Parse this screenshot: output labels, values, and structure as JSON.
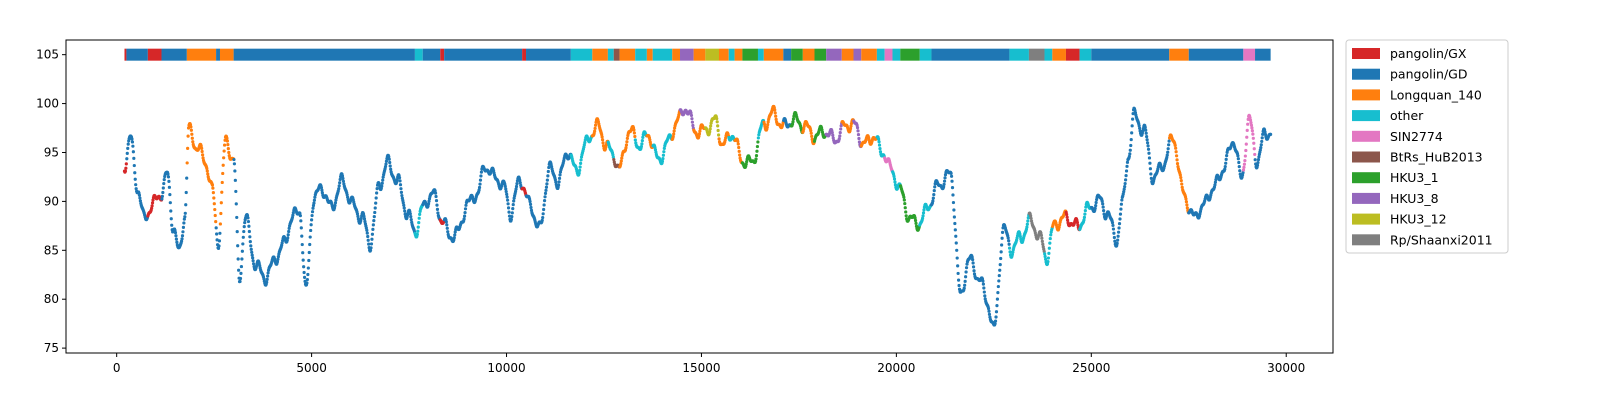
{
  "chart_data": {
    "type": "scatter",
    "title": "",
    "xlabel": "",
    "ylabel": "",
    "xlim": [
      -1300,
      31200
    ],
    "ylim": [
      74.5,
      106.5
    ],
    "xticks": [
      0,
      5000,
      10000,
      15000,
      20000,
      25000,
      30000
    ],
    "yticks": [
      75,
      80,
      85,
      90,
      95,
      100,
      105
    ],
    "grid": false,
    "legend_position": "outside-right",
    "series": [
      {
        "name": "pangolin/GX",
        "color": "#d62728"
      },
      {
        "name": "pangolin/GD",
        "color": "#1f77b4"
      },
      {
        "name": "Longquan_140",
        "color": "#ff7f0e"
      },
      {
        "name": "other",
        "color": "#17becf"
      },
      {
        "name": "SIN2774",
        "color": "#e377c2"
      },
      {
        "name": "BtRs_HuB2013",
        "color": "#8c564b"
      },
      {
        "name": "HKU3_1",
        "color": "#2ca02c"
      },
      {
        "name": "HKU3_8",
        "color": "#9467bd"
      },
      {
        "name": "HKU3_12",
        "color": "#bcbd22"
      },
      {
        "name": "Rp/Shaanxi2011",
        "color": "#7f7f7f"
      }
    ],
    "top_bar_y": 105,
    "segments": [
      [
        200,
        250,
        "pangolin/GX"
      ],
      [
        250,
        800,
        "pangolin/GD"
      ],
      [
        800,
        1150,
        "pangolin/GX"
      ],
      [
        1150,
        1800,
        "pangolin/GD"
      ],
      [
        1800,
        2550,
        "Longquan_140"
      ],
      [
        2550,
        2650,
        "pangolin/GD"
      ],
      [
        2650,
        3000,
        "Longquan_140"
      ],
      [
        3000,
        7650,
        "pangolin/GD"
      ],
      [
        7650,
        7850,
        "other"
      ],
      [
        7850,
        8300,
        "pangolin/GD"
      ],
      [
        8300,
        8400,
        "pangolin/GX"
      ],
      [
        8400,
        10400,
        "pangolin/GD"
      ],
      [
        10400,
        10500,
        "pangolin/GX"
      ],
      [
        10500,
        11650,
        "pangolin/GD"
      ],
      [
        11650,
        12200,
        "other"
      ],
      [
        12200,
        12600,
        "Longquan_140"
      ],
      [
        12600,
        12750,
        "other"
      ],
      [
        12750,
        12900,
        "BtRs_HuB2013"
      ],
      [
        12900,
        13300,
        "Longquan_140"
      ],
      [
        13300,
        13600,
        "other"
      ],
      [
        13600,
        13750,
        "Longquan_140"
      ],
      [
        13750,
        14250,
        "other"
      ],
      [
        14250,
        14450,
        "Longquan_140"
      ],
      [
        14450,
        14800,
        "HKU3_8"
      ],
      [
        14800,
        15100,
        "Longquan_140"
      ],
      [
        15100,
        15450,
        "HKU3_12"
      ],
      [
        15450,
        15700,
        "Longquan_140"
      ],
      [
        15700,
        15850,
        "other"
      ],
      [
        15850,
        16050,
        "Longquan_140"
      ],
      [
        16050,
        16450,
        "HKU3_1"
      ],
      [
        16450,
        16600,
        "other"
      ],
      [
        16600,
        17100,
        "Longquan_140"
      ],
      [
        17100,
        17300,
        "pangolin/GD"
      ],
      [
        17300,
        17600,
        "HKU3_1"
      ],
      [
        17600,
        17900,
        "Longquan_140"
      ],
      [
        17900,
        18200,
        "HKU3_1"
      ],
      [
        18200,
        18600,
        "HKU3_8"
      ],
      [
        18600,
        18900,
        "Longquan_140"
      ],
      [
        18900,
        19100,
        "HKU3_8"
      ],
      [
        19100,
        19500,
        "Longquan_140"
      ],
      [
        19500,
        19700,
        "other"
      ],
      [
        19700,
        19900,
        "SIN2774"
      ],
      [
        19900,
        20100,
        "other"
      ],
      [
        20100,
        20600,
        "HKU3_1"
      ],
      [
        20600,
        20900,
        "other"
      ],
      [
        20900,
        22900,
        "pangolin/GD"
      ],
      [
        22900,
        23400,
        "other"
      ],
      [
        23400,
        23800,
        "Rp/Shaanxi2011"
      ],
      [
        23800,
        24000,
        "other"
      ],
      [
        24000,
        24350,
        "Longquan_140"
      ],
      [
        24350,
        24700,
        "pangolin/GX"
      ],
      [
        24700,
        25000,
        "other"
      ],
      [
        25000,
        27000,
        "pangolin/GD"
      ],
      [
        27000,
        27500,
        "Longquan_140"
      ],
      [
        27500,
        28900,
        "pangolin/GD"
      ],
      [
        28900,
        29200,
        "SIN2774"
      ],
      [
        29200,
        29600,
        "pangolin/GD"
      ]
    ],
    "curve_knots": [
      [
        200,
        93.5
      ],
      [
        350,
        96.5
      ],
      [
        550,
        91.5
      ],
      [
        700,
        88.5
      ],
      [
        900,
        89.5
      ],
      [
        1150,
        90.5
      ],
      [
        1300,
        92.5
      ],
      [
        1450,
        87.5
      ],
      [
        1600,
        85.0
      ],
      [
        1750,
        89.0
      ],
      [
        1850,
        97.5
      ],
      [
        2050,
        95.5
      ],
      [
        2300,
        93.5
      ],
      [
        2450,
        91.0
      ],
      [
        2600,
        86.0
      ],
      [
        2800,
        96.5
      ],
      [
        3000,
        94.5
      ],
      [
        3150,
        82.0
      ],
      [
        3300,
        88.0
      ],
      [
        3550,
        83.5
      ],
      [
        3800,
        82.5
      ],
      [
        4100,
        84.5
      ],
      [
        4300,
        85.5
      ],
      [
        4500,
        88.0
      ],
      [
        4700,
        89.0
      ],
      [
        4850,
        81.0
      ],
      [
        5050,
        90.5
      ],
      [
        5250,
        91.5
      ],
      [
        5500,
        89.0
      ],
      [
        5800,
        92.0
      ],
      [
        6050,
        90.0
      ],
      [
        6300,
        88.5
      ],
      [
        6500,
        85.5
      ],
      [
        6750,
        91.5
      ],
      [
        6950,
        94.0
      ],
      [
        7200,
        92.5
      ],
      [
        7450,
        89.0
      ],
      [
        7650,
        86.5
      ],
      [
        7850,
        89.0
      ],
      [
        8100,
        91.0
      ],
      [
        8350,
        88.5
      ],
      [
        8550,
        86.5
      ],
      [
        8750,
        86.5
      ],
      [
        9000,
        89.5
      ],
      [
        9250,
        91.0
      ],
      [
        9450,
        94.0
      ],
      [
        9700,
        92.5
      ],
      [
        9950,
        91.0
      ],
      [
        10100,
        88.5
      ],
      [
        10350,
        92.5
      ],
      [
        10600,
        90.0
      ],
      [
        10850,
        87.0
      ],
      [
        11100,
        93.0
      ],
      [
        11300,
        92.0
      ],
      [
        11600,
        95.5
      ],
      [
        11800,
        93.0
      ],
      [
        12000,
        95.5
      ],
      [
        12350,
        97.5
      ],
      [
        12550,
        96.0
      ],
      [
        12750,
        95.0
      ],
      [
        12900,
        93.5
      ],
      [
        13150,
        97.0
      ],
      [
        13400,
        95.5
      ],
      [
        13650,
        97.0
      ],
      [
        13900,
        94.5
      ],
      [
        14150,
        96.0
      ],
      [
        14400,
        98.0
      ],
      [
        14600,
        99.5
      ],
      [
        14850,
        97.5
      ],
      [
        15100,
        97.5
      ],
      [
        15350,
        98.0
      ],
      [
        15550,
        95.5
      ],
      [
        15800,
        97.0
      ],
      [
        16050,
        94.5
      ],
      [
        16300,
        94.0
      ],
      [
        16600,
        97.5
      ],
      [
        16850,
        99.0
      ],
      [
        17100,
        98.0
      ],
      [
        17350,
        98.5
      ],
      [
        17600,
        97.5
      ],
      [
        17900,
        96.5
      ],
      [
        18150,
        97.5
      ],
      [
        18450,
        96.5
      ],
      [
        18700,
        97.5
      ],
      [
        18950,
        97.5
      ],
      [
        19150,
        96.0
      ],
      [
        19400,
        97.0
      ],
      [
        19650,
        95.0
      ],
      [
        19850,
        93.0
      ],
      [
        20100,
        91.0
      ],
      [
        20350,
        88.5
      ],
      [
        20600,
        88.0
      ],
      [
        20850,
        89.5
      ],
      [
        21100,
        91.5
      ],
      [
        21400,
        93.0
      ],
      [
        21650,
        80.5
      ],
      [
        21850,
        84.0
      ],
      [
        22100,
        82.0
      ],
      [
        22350,
        79.5
      ],
      [
        22500,
        77.0
      ],
      [
        22750,
        87.5
      ],
      [
        22950,
        85.0
      ],
      [
        23200,
        86.0
      ],
      [
        23450,
        88.0
      ],
      [
        23700,
        86.5
      ],
      [
        23850,
        84.5
      ],
      [
        24050,
        87.5
      ],
      [
        24350,
        88.0
      ],
      [
        24650,
        87.5
      ],
      [
        24900,
        89.5
      ],
      [
        25200,
        90.0
      ],
      [
        25400,
        88.5
      ],
      [
        25650,
        86.0
      ],
      [
        25800,
        90.0
      ],
      [
        25950,
        95.0
      ],
      [
        26100,
        99.0
      ],
      [
        26350,
        97.0
      ],
      [
        26600,
        92.0
      ],
      [
        26850,
        94.0
      ],
      [
        27100,
        97.0
      ],
      [
        27350,
        91.0
      ],
      [
        27600,
        88.0
      ],
      [
        27800,
        89.0
      ],
      [
        28100,
        91.5
      ],
      [
        28400,
        93.5
      ],
      [
        28650,
        96.0
      ],
      [
        28850,
        92.0
      ],
      [
        29050,
        98.5
      ],
      [
        29250,
        94.5
      ],
      [
        29450,
        97.0
      ],
      [
        29600,
        97.0
      ]
    ]
  }
}
